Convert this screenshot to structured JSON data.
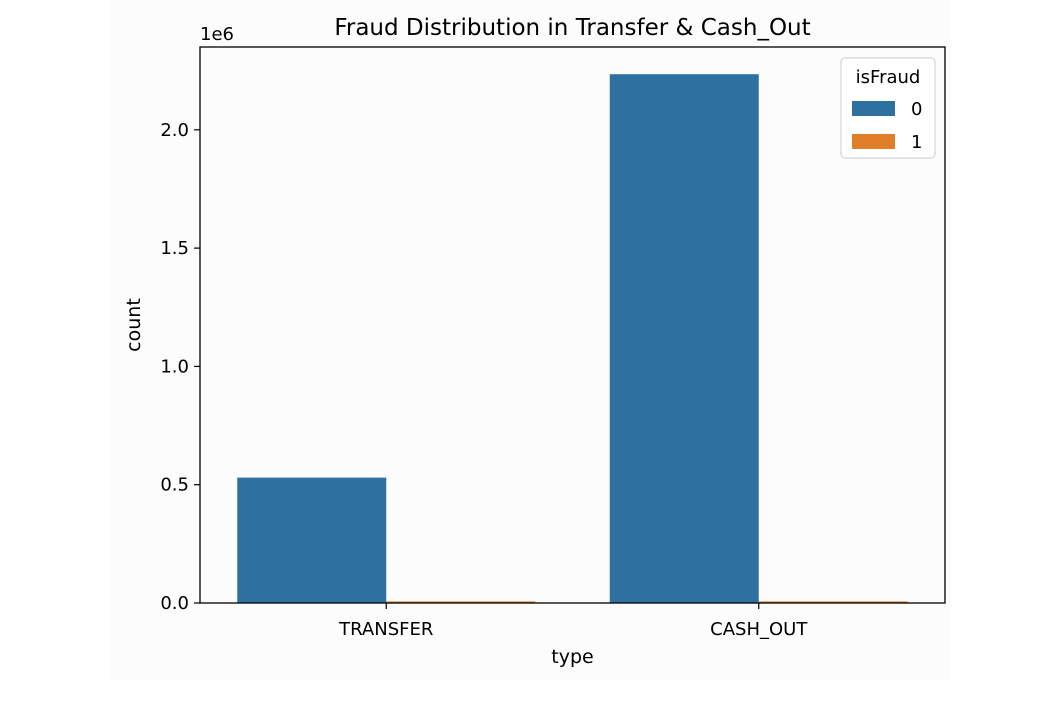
{
  "chart_data": {
    "type": "bar",
    "title": "Fraud Distribution in Transfer & Cash_Out",
    "xlabel": "type",
    "ylabel": "count",
    "y_offset_text": "1e6",
    "categories": [
      "TRANSFER",
      "CASH_OUT"
    ],
    "ylim": [
      0,
      2.35
    ],
    "yticks": [
      0.0,
      0.5,
      1.0,
      1.5,
      2.0
    ],
    "ytick_labels": [
      "0.0",
      "0.5",
      "1.0",
      "1.5",
      "2.0"
    ],
    "legend": {
      "title": "isFraud",
      "placement": "top-right"
    },
    "series": [
      {
        "name": "0",
        "color": "#2e71a1",
        "values": [
          0.53,
          2.235
        ]
      },
      {
        "name": "1",
        "color": "#e17f29",
        "values": [
          0.004,
          0.004
        ]
      }
    ]
  }
}
